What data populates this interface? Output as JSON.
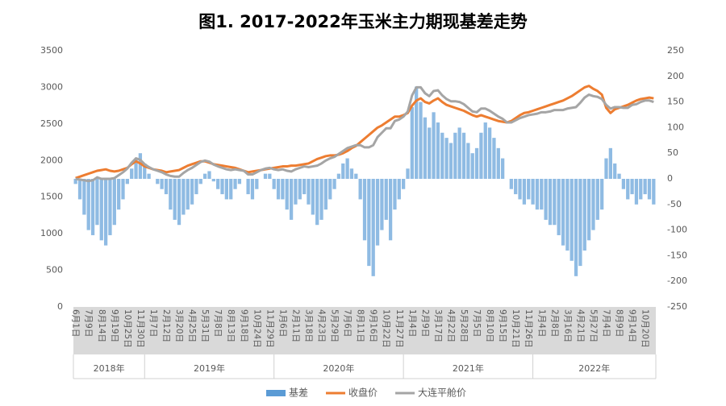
{
  "chart_data": {
    "type": "combo",
    "title": "图1. 2017-2022年玉米主力期现基差走势",
    "categories": [
      "6月1日",
      null,
      null,
      "7月9日",
      null,
      null,
      "8月14日",
      null,
      null,
      "9月19日",
      null,
      null,
      "10月25日",
      null,
      null,
      "11月30日",
      null,
      null,
      "1月7日",
      null,
      null,
      "2月12日",
      null,
      null,
      "3月20日",
      null,
      null,
      "4月25日",
      null,
      null,
      "5月31日",
      null,
      null,
      "7月8日",
      null,
      null,
      "8月13日",
      null,
      null,
      "9月18日",
      null,
      null,
      "10月24日",
      null,
      null,
      "11月29日",
      null,
      null,
      "1月6日",
      null,
      null,
      "2月11日",
      null,
      null,
      "3月18日",
      null,
      null,
      "4月23日",
      null,
      null,
      "5月29日",
      null,
      null,
      "7月6日",
      null,
      null,
      "8月11日",
      null,
      null,
      "9月16日",
      null,
      null,
      "10月22日",
      null,
      null,
      "11月27日",
      null,
      null,
      "1月4日",
      null,
      null,
      "2月9日",
      null,
      null,
      "3月17日",
      null,
      null,
      "4月22日",
      null,
      null,
      "5月28日",
      null,
      null,
      "7月5日",
      null,
      null,
      "8月10日",
      null,
      null,
      "9月15日",
      null,
      null,
      "10月21日",
      null,
      null,
      "11月26日",
      null,
      null,
      "1月4日",
      null,
      null,
      "2月8日",
      null,
      null,
      "3月16日",
      null,
      null,
      "4月21日",
      null,
      null,
      "5月27日",
      null,
      null,
      "7月4日",
      null,
      null,
      "8月9日",
      null,
      null,
      "9月14日",
      null,
      null,
      "10月20日",
      null,
      null
    ],
    "year_groups": [
      "2018年",
      "2019年",
      "2020年",
      "2021年",
      "2022年"
    ],
    "series": [
      {
        "name": "基差",
        "type": "bar",
        "axis": "y2",
        "color": "#8fbbe3",
        "legend_color": "#5b9bd5",
        "values": [
          -10,
          -40,
          -70,
          -100,
          -110,
          -90,
          -120,
          -130,
          -110,
          -90,
          -60,
          -40,
          -10,
          20,
          40,
          50,
          30,
          10,
          0,
          -10,
          -20,
          -30,
          -60,
          -80,
          -90,
          -70,
          -60,
          -50,
          -30,
          -10,
          10,
          15,
          -5,
          -20,
          -30,
          -40,
          -40,
          -20,
          -10,
          0,
          -30,
          -40,
          -20,
          0,
          10,
          10,
          -20,
          -40,
          -40,
          -60,
          -80,
          -50,
          -40,
          -30,
          -50,
          -70,
          -90,
          -80,
          -60,
          -40,
          -20,
          10,
          30,
          40,
          20,
          10,
          -40,
          -120,
          -170,
          -190,
          -130,
          -100,
          -80,
          -120,
          -60,
          -40,
          -20,
          20,
          140,
          180,
          150,
          120,
          100,
          130,
          110,
          90,
          80,
          70,
          90,
          100,
          90,
          70,
          50,
          60,
          90,
          110,
          100,
          80,
          60,
          40,
          0,
          -20,
          -30,
          -40,
          -50,
          -40,
          -50,
          -60,
          -60,
          -80,
          -90,
          -90,
          -110,
          -130,
          -140,
          -160,
          -190,
          -170,
          -140,
          -120,
          -100,
          -80,
          -60,
          40,
          60,
          30,
          10,
          -20,
          -40,
          -30,
          -50,
          -40,
          -30,
          -40,
          -50
        ]
      },
      {
        "name": "收盘价",
        "type": "line",
        "color": "#ed7d31",
        "values": [
          1760,
          1780,
          1800,
          1820,
          1840,
          1860,
          1870,
          1880,
          1860,
          1850,
          1860,
          1880,
          1900,
          1950,
          1990,
          1960,
          1920,
          1900,
          1880,
          1870,
          1860,
          1840,
          1850,
          1860,
          1870,
          1900,
          1930,
          1950,
          1970,
          1990,
          1990,
          1970,
          1950,
          1940,
          1930,
          1920,
          1910,
          1900,
          1880,
          1860,
          1840,
          1850,
          1860,
          1870,
          1880,
          1890,
          1900,
          1910,
          1920,
          1920,
          1930,
          1930,
          1940,
          1950,
          1960,
          1990,
          2020,
          2040,
          2060,
          2070,
          2070,
          2080,
          2100,
          2130,
          2170,
          2200,
          2250,
          2300,
          2350,
          2400,
          2450,
          2480,
          2520,
          2560,
          2600,
          2600,
          2620,
          2650,
          2750,
          2820,
          2850,
          2800,
          2780,
          2820,
          2850,
          2800,
          2760,
          2740,
          2720,
          2700,
          2680,
          2650,
          2620,
          2600,
          2620,
          2600,
          2580,
          2560,
          2540,
          2530,
          2520,
          2540,
          2580,
          2620,
          2650,
          2660,
          2680,
          2700,
          2720,
          2740,
          2760,
          2780,
          2800,
          2820,
          2850,
          2880,
          2920,
          2960,
          3000,
          3020,
          2980,
          2950,
          2900,
          2720,
          2650,
          2700,
          2720,
          2740,
          2760,
          2790,
          2820,
          2840,
          2850,
          2860,
          2850
        ]
      },
      {
        "name": "大连平舱价",
        "type": "line",
        "color": "#a5a5a5",
        "values": [
          1750,
          1740,
          1730,
          1720,
          1730,
          1770,
          1750,
          1750,
          1750,
          1760,
          1800,
          1840,
          1890,
          1970,
          2030,
          2010,
          1950,
          1910,
          1880,
          1860,
          1840,
          1810,
          1790,
          1780,
          1780,
          1830,
          1870,
          1900,
          1940,
          1980,
          2000,
          1985,
          1945,
          1920,
          1900,
          1880,
          1870,
          1880,
          1870,
          1860,
          1810,
          1810,
          1840,
          1870,
          1890,
          1900,
          1880,
          1870,
          1880,
          1860,
          1850,
          1880,
          1900,
          1920,
          1910,
          1920,
          1930,
          1960,
          2000,
          2030,
          2050,
          2090,
          2130,
          2170,
          2190,
          2210,
          2210,
          2180,
          2180,
          2210,
          2320,
          2380,
          2440,
          2440,
          2540,
          2560,
          2600,
          2670,
          2890,
          3000,
          3000,
          2920,
          2880,
          2950,
          2960,
          2890,
          2840,
          2810,
          2810,
          2800,
          2770,
          2720,
          2670,
          2660,
          2710,
          2710,
          2680,
          2640,
          2600,
          2570,
          2520,
          2520,
          2550,
          2580,
          2600,
          2620,
          2630,
          2640,
          2660,
          2660,
          2670,
          2690,
          2690,
          2690,
          2710,
          2720,
          2730,
          2790,
          2860,
          2900,
          2880,
          2870,
          2840,
          2760,
          2710,
          2730,
          2730,
          2720,
          2720,
          2760,
          2770,
          2800,
          2820,
          2820,
          2800
        ]
      }
    ],
    "ylim": [
      0,
      3500
    ],
    "yticks": [
      0,
      500,
      1000,
      1500,
      2000,
      2500,
      3000,
      3500
    ],
    "y2lim": [
      -250,
      250
    ],
    "y2ticks": [
      -250,
      -200,
      -150,
      -100,
      -50,
      0,
      50,
      100,
      150,
      200,
      250
    ]
  }
}
